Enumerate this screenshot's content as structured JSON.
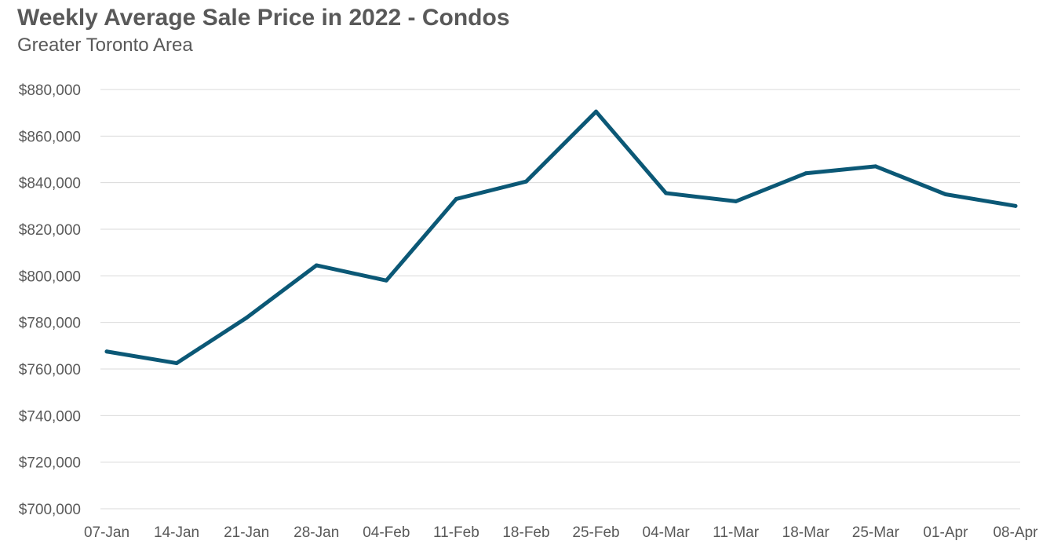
{
  "chart_data": {
    "type": "line",
    "title": "Weekly Average Sale Price in 2022 - Condos",
    "subtitle": "Greater Toronto Area",
    "xlabel": "",
    "ylabel": "",
    "categories": [
      "07-Jan",
      "14-Jan",
      "21-Jan",
      "28-Jan",
      "04-Feb",
      "11-Feb",
      "18-Feb",
      "25-Feb",
      "04-Mar",
      "11-Mar",
      "18-Mar",
      "25-Mar",
      "01-Apr",
      "08-Apr"
    ],
    "series": [
      {
        "name": "Weekly Average Sale Price - Condos",
        "values": [
          767500,
          762500,
          782000,
          804500,
          798000,
          833000,
          840500,
          870500,
          835500,
          832000,
          844000,
          847000,
          835000,
          830000
        ]
      }
    ],
    "ylim": [
      700000,
      880000
    ],
    "yticks": [
      700000,
      720000,
      740000,
      760000,
      780000,
      800000,
      820000,
      840000,
      860000,
      880000
    ],
    "ytick_labels": [
      "$700,000",
      "$720,000",
      "$740,000",
      "$760,000",
      "$780,000",
      "$800,000",
      "$820,000",
      "$840,000",
      "$860,000",
      "$880,000"
    ],
    "grid": true,
    "legend": "none",
    "colors": {
      "line": "#0b5876",
      "grid": "#d9d9d9",
      "text": "#595959"
    }
  }
}
